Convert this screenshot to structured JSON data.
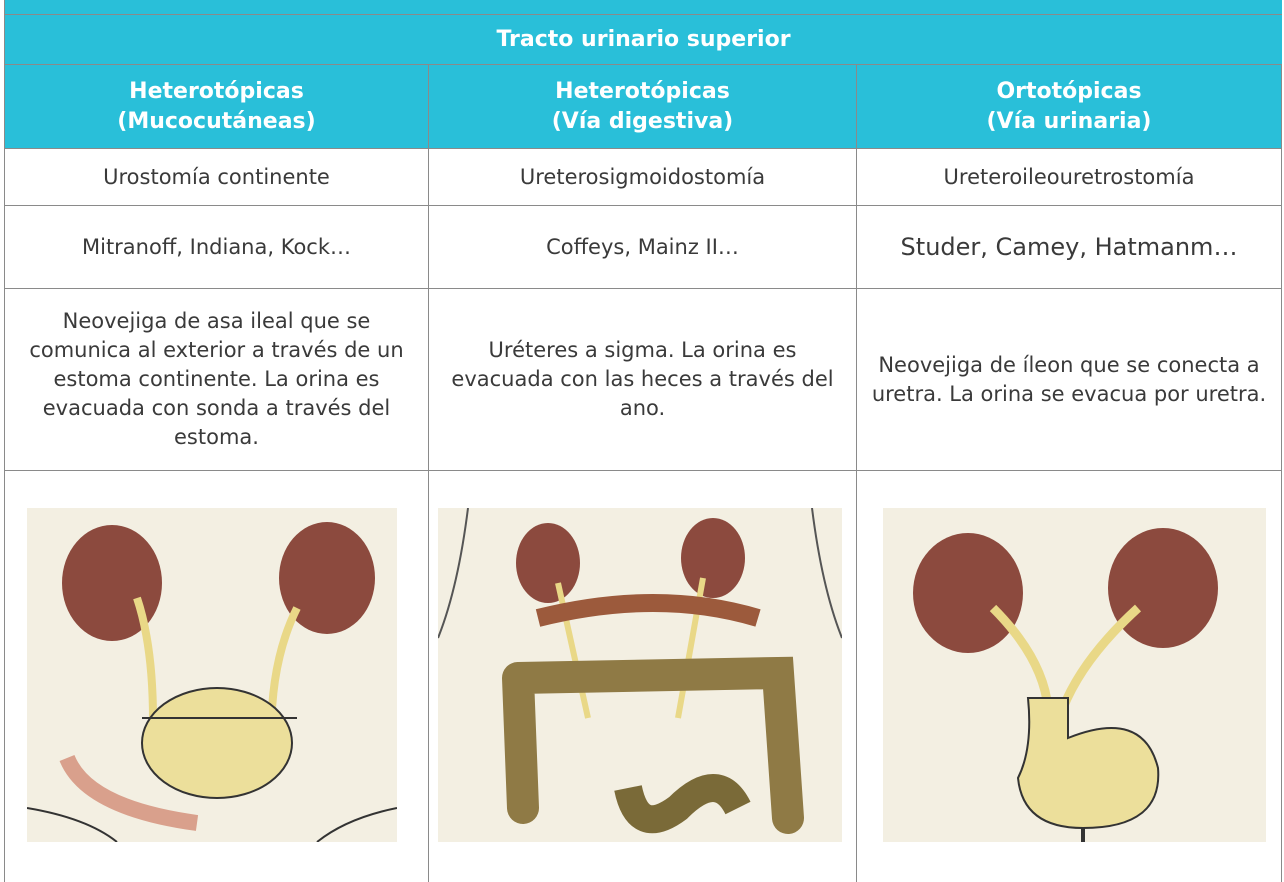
{
  "table": {
    "title": "Tracto urinario superior",
    "headers": [
      [
        "Heterotópicas",
        "(Mucocutáneas)"
      ],
      [
        "Heterotópicas",
        "(Vía digestiva)"
      ],
      [
        "Ortotópicas",
        "(Vía urinaria)"
      ]
    ],
    "rows": [
      [
        "Urostomía continente",
        "Ureterosigmoidostomía",
        "Ureteroileouretrostomía"
      ],
      [
        "Mitranoff, Indiana, Kock…",
        "Coffeys, Mainz II…",
        "Studer, Camey, Hatmanm…"
      ],
      [
        "Neovejiga de asa ileal que se comunica al exterior a través de un estoma continente. La orina es evacuada con sonda a través del estoma.",
        "Uréteres a sigma. La orina es evacuada con las heces a través del ano.",
        "Neovejiga de íleon que se conecta a uretra. La orina se evacua por uretra."
      ]
    ]
  }
}
